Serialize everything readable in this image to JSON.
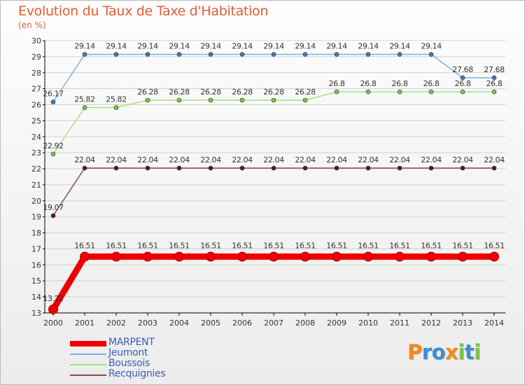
{
  "colors": {
    "title": "#e25d33",
    "legend_text": "#3b5dbb",
    "grid": "#d0d0d0",
    "axis": "#000000"
  },
  "header": {
    "title": "Evolution du Taux de Taxe d'Habitation",
    "subtitle": "(en %)"
  },
  "chart_data": {
    "type": "line",
    "title": "Evolution du Taux de Taxe d'Habitation",
    "ylabel": "(en %)",
    "xlabel": "",
    "ylim": [
      13,
      30
    ],
    "yticks": [
      13,
      14,
      15,
      16,
      17,
      18,
      19,
      20,
      21,
      22,
      23,
      24,
      25,
      26,
      27,
      28,
      29,
      30
    ],
    "x": [
      "2000",
      "2001",
      "2002",
      "2003",
      "2004",
      "2005",
      "2006",
      "2007",
      "2008",
      "2009",
      "2010",
      "2011",
      "2012",
      "2013",
      "2014"
    ],
    "grid": true,
    "series": [
      {
        "name": "MARPENT",
        "color": "#ee0000",
        "marker_color": "#ee0000",
        "emphasis": "thick",
        "values": [
          13.22,
          16.51,
          16.51,
          16.51,
          16.51,
          16.51,
          16.51,
          16.51,
          16.51,
          16.51,
          16.51,
          16.51,
          16.51,
          16.51,
          16.51
        ],
        "labels": [
          "13.22",
          "16.51",
          "16.51",
          "16.51",
          "16.51",
          "16.51",
          "16.51",
          "16.51",
          "16.51",
          "16.51",
          "16.51",
          "16.51",
          "16.51",
          "16.51",
          "16.51"
        ]
      },
      {
        "name": "Jeumont",
        "color": "#7fafdf",
        "marker_color": "#3c7bbf",
        "emphasis": "normal",
        "values": [
          26.17,
          29.14,
          29.14,
          29.14,
          29.14,
          29.14,
          29.14,
          29.14,
          29.14,
          29.14,
          29.14,
          29.14,
          29.14,
          27.68,
          27.68
        ],
        "labels": [
          "26.17",
          "29.14",
          "29.14",
          "29.14",
          "29.14",
          "29.14",
          "29.14",
          "29.14",
          "29.14",
          "29.14",
          "29.14",
          "29.14",
          "29.14",
          "27.68",
          "27.68"
        ]
      },
      {
        "name": "Boussois",
        "color": "#a8e07f",
        "marker_color": "#77c840",
        "emphasis": "normal",
        "values": [
          22.92,
          25.82,
          25.82,
          26.28,
          26.28,
          26.28,
          26.28,
          26.28,
          26.28,
          26.8,
          26.8,
          26.8,
          26.8,
          26.8,
          26.8
        ],
        "labels": [
          "22.92",
          "25.82",
          "25.82",
          "26.28",
          "26.28",
          "26.28",
          "26.28",
          "26.28",
          "26.28",
          "26.8",
          "26.8",
          "26.8",
          "26.8",
          "26.8",
          "26.8"
        ]
      },
      {
        "name": "Recquignies",
        "color": "#8a4b4b",
        "marker_color": "#5a1a1a",
        "emphasis": "normal",
        "values": [
          19.07,
          22.04,
          22.04,
          22.04,
          22.04,
          22.04,
          22.04,
          22.04,
          22.04,
          22.04,
          22.04,
          22.04,
          22.04,
          22.04,
          22.04
        ],
        "labels": [
          "19.07",
          "22.04",
          "22.04",
          "22.04",
          "22.04",
          "22.04",
          "22.04",
          "22.04",
          "22.04",
          "22.04",
          "22.04",
          "22.04",
          "22.04",
          "22.04",
          "22.04"
        ]
      }
    ]
  },
  "legend": {
    "items": [
      {
        "label": "MARPENT",
        "color": "#ee0000",
        "emphasis": "thick"
      },
      {
        "label": "Jeumont",
        "color": "#7fafdf",
        "emphasis": "normal"
      },
      {
        "label": "Boussois",
        "color": "#a8e07f",
        "emphasis": "normal"
      },
      {
        "label": "Recquignies",
        "color": "#8a4b4b",
        "emphasis": "normal"
      }
    ]
  },
  "logo": {
    "text": "Proxiti",
    "letters": [
      {
        "ch": "P",
        "color": "#f28a1c"
      },
      {
        "ch": "r",
        "color": "#3a8ed6"
      },
      {
        "ch": "o",
        "color": "#3a8ed6"
      },
      {
        "ch": "x",
        "color": "#f28a1c"
      },
      {
        "ch": "i",
        "color": "#7cc242"
      },
      {
        "ch": "t",
        "color": "#3a8ed6"
      },
      {
        "ch": "i",
        "color": "#7cc242"
      }
    ]
  }
}
